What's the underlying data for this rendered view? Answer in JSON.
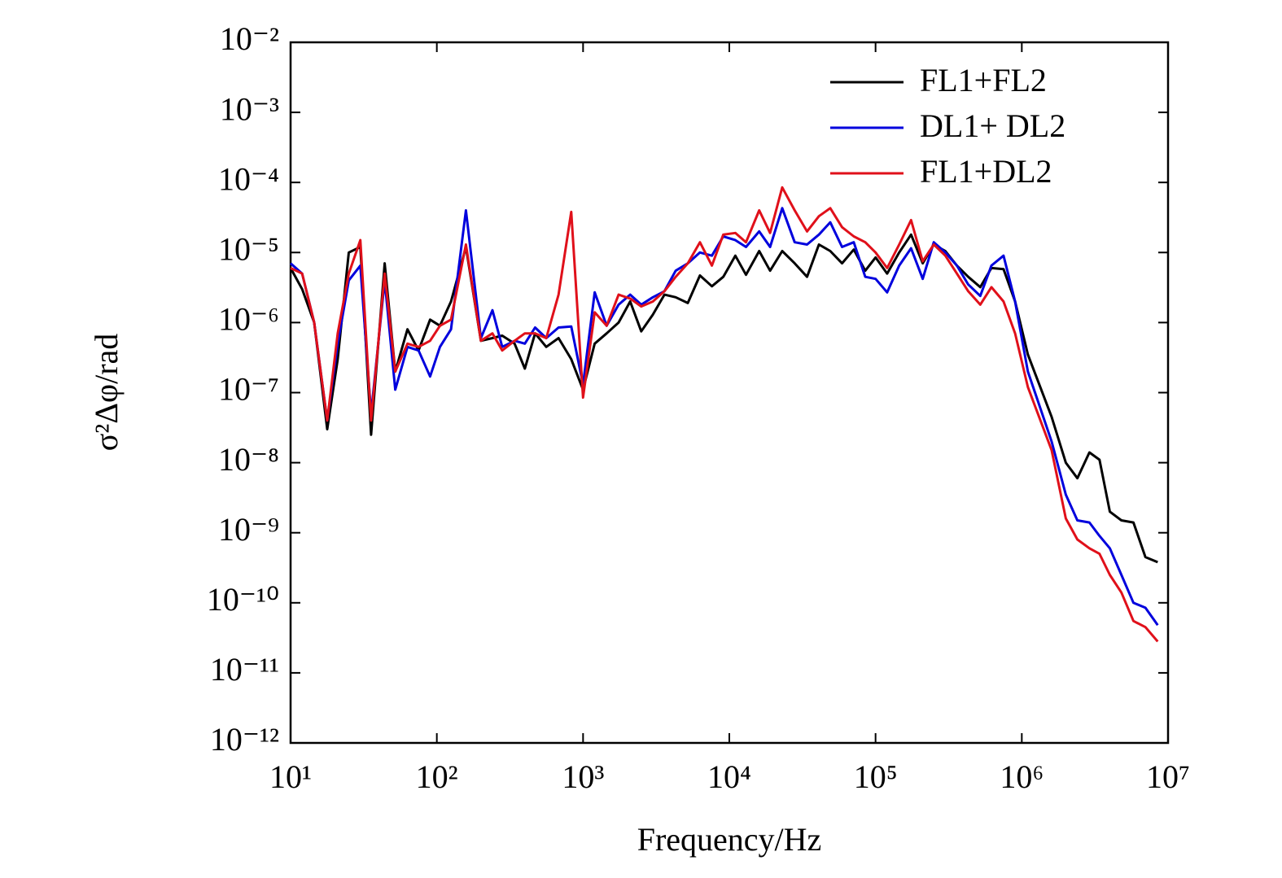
{
  "chart_data": {
    "type": "line",
    "x_label": "Frequency/Hz",
    "y_label": "σ²Δφ/rad",
    "xlog": true,
    "ylog": true,
    "legend": "upper right",
    "xlim": [
      10,
      10000000
    ],
    "ylim": [
      1e-12,
      0.01
    ],
    "xticks": [
      {
        "value": 10,
        "label": "10¹"
      },
      {
        "value": 100,
        "label": "10²"
      },
      {
        "value": 1000,
        "label": "10³"
      },
      {
        "value": 10000,
        "label": "10⁴"
      },
      {
        "value": 100000,
        "label": "10⁵"
      },
      {
        "value": 1000000,
        "label": "10⁶"
      },
      {
        "value": 10000000,
        "label": "10⁷"
      }
    ],
    "yticks": [
      {
        "value": 0.01,
        "label": "10⁻²"
      },
      {
        "value": 0.001,
        "label": "10⁻³"
      },
      {
        "value": 0.0001,
        "label": "10⁻⁴"
      },
      {
        "value": 1e-05,
        "label": "10⁻⁵"
      },
      {
        "value": 1e-06,
        "label": "10⁻⁶"
      },
      {
        "value": 1e-07,
        "label": "10⁻⁷"
      },
      {
        "value": 1e-08,
        "label": "10⁻⁸"
      },
      {
        "value": 1e-09,
        "label": "10⁻⁹"
      },
      {
        "value": 1e-10,
        "label": "10⁻¹⁰"
      },
      {
        "value": 1e-11,
        "label": "10⁻¹¹"
      },
      {
        "value": 1e-12,
        "label": "10⁻¹²"
      }
    ],
    "x": [
      10,
      12,
      14.5,
      17.8,
      21,
      25,
      30,
      35.5,
      44,
      52,
      63,
      75,
      90,
      105,
      125,
      158,
      200,
      240,
      280,
      340,
      400,
      470,
      560,
      680,
      830,
      1000,
      1200,
      1450,
      1750,
      2100,
      2500,
      3000,
      3600,
      4300,
      5200,
      6300,
      7600,
      9100,
      11000,
      13000,
      16000,
      19000,
      23000,
      28000,
      34000,
      41000,
      49000,
      59000,
      71000,
      85000,
      100000,
      120000,
      145000,
      175000,
      210000,
      250000,
      300000,
      360000,
      430000,
      520000,
      620000,
      750000,
      900000,
      1100000,
      1600000,
      2000000,
      2400000,
      2900000,
      3400000,
      4000000,
      4800000,
      5800000,
      7000000,
      8500000
    ],
    "series": [
      {
        "name": "FL1+FL2",
        "color": "#000000",
        "values": [
          6e-06,
          3e-06,
          1e-06,
          3e-08,
          3e-07,
          1e-05,
          1.2e-05,
          2.5e-08,
          7e-06,
          2e-07,
          8e-07,
          4e-07,
          1.1e-06,
          9e-07,
          2e-06,
          1.2e-05,
          5.5e-07,
          6e-07,
          6.5e-07,
          5e-07,
          2.2e-07,
          7e-07,
          4.5e-07,
          6e-07,
          3e-07,
          1.1e-07,
          5e-07,
          7e-07,
          1e-06,
          2e-06,
          7.5e-07,
          1.3e-06,
          2.5e-06,
          2.3e-06,
          1.9e-06,
          4.7e-06,
          3.3e-06,
          4.5e-06,
          9e-06,
          4.8e-06,
          1.05e-05,
          5.5e-06,
          1.05e-05,
          7e-06,
          4.5e-06,
          1.3e-05,
          1.05e-05,
          7e-06,
          1.1e-05,
          5.5e-06,
          8.5e-06,
          5e-06,
          1e-05,
          1.8e-05,
          7e-06,
          1.3e-05,
          1.05e-05,
          6.5e-06,
          4.5e-06,
          3.2e-06,
          6e-06,
          5.8e-06,
          2e-06,
          3.5e-07,
          4.5e-08,
          1e-08,
          6e-09,
          1.4e-08,
          1.1e-08,
          2e-09,
          1.5e-09,
          1.4e-09,
          4.5e-10,
          3.8e-10
        ]
      },
      {
        "name": "DL1+ DL2",
        "color": "#0000dd",
        "values": [
          7e-06,
          5e-06,
          1e-06,
          4e-08,
          5e-07,
          4e-06,
          6.5e-06,
          5e-08,
          4e-06,
          1.1e-07,
          4.5e-07,
          4e-07,
          1.7e-07,
          4.5e-07,
          8e-07,
          4e-05,
          6e-07,
          1.5e-06,
          4.5e-07,
          5.5e-07,
          5e-07,
          8.5e-07,
          6e-07,
          8.5e-07,
          8.8e-07,
          1.3e-07,
          2.7e-06,
          9e-07,
          1.8e-06,
          2.5e-06,
          1.8e-06,
          2.3e-06,
          2.8e-06,
          5.5e-06,
          7e-06,
          1e-05,
          9e-06,
          1.7e-05,
          1.5e-05,
          1.2e-05,
          2e-05,
          1.2e-05,
          4.3e-05,
          1.4e-05,
          1.3e-05,
          1.8e-05,
          2.7e-05,
          1.2e-05,
          1.4e-05,
          4.5e-06,
          4.2e-06,
          2.7e-06,
          6.5e-06,
          1.15e-05,
          4.2e-06,
          1.4e-05,
          1e-05,
          6.5e-06,
          3.5e-06,
          2.4e-06,
          6.5e-06,
          9e-06,
          2e-06,
          2e-07,
          2e-08,
          3.5e-09,
          1.5e-09,
          1.4e-09,
          9e-10,
          6e-10,
          2.5e-10,
          1e-10,
          8.5e-11,
          4.8e-11
        ]
      },
      {
        "name": "FL1+DL2",
        "color": "#e0101a",
        "values": [
          6e-06,
          5e-06,
          1e-06,
          4e-08,
          7e-07,
          5e-06,
          1.5e-05,
          4e-08,
          5e-06,
          2e-07,
          5e-07,
          4.5e-07,
          5.5e-07,
          9e-07,
          1.1e-06,
          1.3e-05,
          5.5e-07,
          7e-07,
          4e-07,
          5.5e-07,
          7e-07,
          7e-07,
          6e-07,
          2.5e-06,
          3.8e-05,
          8.5e-08,
          1.4e-06,
          9e-07,
          2.5e-06,
          2.2e-06,
          1.7e-06,
          2e-06,
          2.8e-06,
          4.5e-06,
          7e-06,
          1.4e-05,
          6.5e-06,
          1.8e-05,
          1.9e-05,
          1.4e-05,
          4e-05,
          1.9e-05,
          8.5e-05,
          4e-05,
          2e-05,
          3.3e-05,
          4.3e-05,
          2.3e-05,
          1.7e-05,
          1.4e-05,
          1e-05,
          6e-06,
          1.3e-05,
          2.9e-05,
          7.5e-06,
          1.3e-05,
          9e-06,
          5e-06,
          2.8e-06,
          1.8e-06,
          3.2e-06,
          2e-06,
          7e-07,
          1.2e-07,
          1.5e-08,
          1.6e-09,
          8e-10,
          6e-10,
          5e-10,
          2.5e-10,
          1.4e-10,
          5.5e-11,
          4.5e-11,
          2.8e-11
        ]
      }
    ]
  }
}
